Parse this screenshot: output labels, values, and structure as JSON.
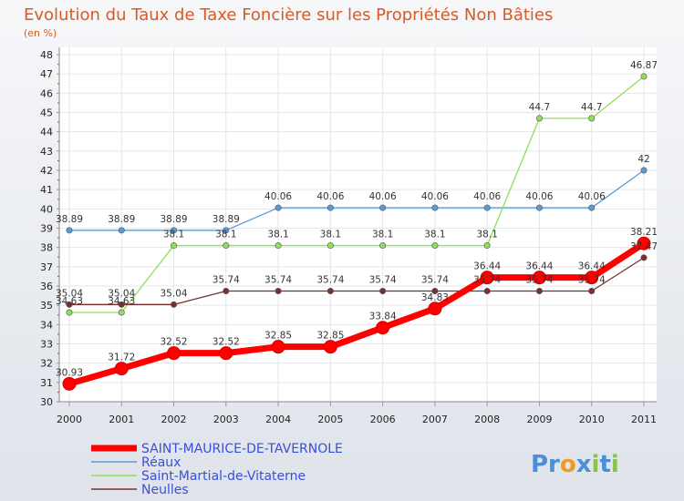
{
  "chart_data": {
    "type": "line",
    "title": "Evolution du Taux de Taxe Foncière sur les Propriétés Non Bâties",
    "subtitle": "(en %)",
    "categories": [
      "2000",
      "2001",
      "2002",
      "2003",
      "2004",
      "2005",
      "2006",
      "2007",
      "2008",
      "2009",
      "2010",
      "2011"
    ],
    "ylim": [
      30,
      48
    ],
    "yticks": [
      "30",
      "31",
      "32",
      "33",
      "34",
      "35",
      "36",
      "37",
      "38",
      "39",
      "40",
      "41",
      "42",
      "43",
      "44",
      "45",
      "46",
      "47",
      "48"
    ],
    "grid": true,
    "legend_position": "bottom-left",
    "series": [
      {
        "name": "SAINT-MAURICE-DE-TAVERNOLE",
        "color": "#ff0000",
        "values": [
          30.93,
          31.72,
          32.52,
          32.52,
          32.85,
          32.85,
          33.84,
          34.83,
          36.44,
          36.44,
          36.44,
          38.21
        ],
        "labels": [
          "30.93",
          "31.72",
          "32.52",
          "32.52",
          "32.85",
          "32.85",
          "33.84",
          "34.83",
          "36.44",
          "36.44",
          "36.44",
          "38.21"
        ]
      },
      {
        "name": "Réaux",
        "color": "#5b9bd5",
        "values": [
          38.89,
          38.89,
          38.89,
          38.89,
          40.06,
          40.06,
          40.06,
          40.06,
          40.06,
          40.06,
          40.06,
          42
        ],
        "labels": [
          "38.89",
          "38.89",
          "38.89",
          "38.89",
          "40.06",
          "40.06",
          "40.06",
          "40.06",
          "40.06",
          "40.06",
          "40.06",
          "42"
        ]
      },
      {
        "name": "Saint-Martial-de-Vitaterne",
        "color": "#8ee05a",
        "values": [
          34.63,
          34.63,
          38.1,
          38.1,
          38.1,
          38.1,
          38.1,
          38.1,
          38.1,
          44.7,
          44.7,
          46.87
        ],
        "labels": [
          "34.63",
          "34.63",
          "38.1",
          "38.1",
          "38.1",
          "38.1",
          "38.1",
          "38.1",
          "38.1",
          "44.7",
          "44.7",
          "46.87"
        ]
      },
      {
        "name": "Neulles",
        "color": "#7a2f30",
        "values": [
          35.04,
          35.04,
          35.04,
          35.74,
          35.74,
          35.74,
          35.74,
          35.74,
          35.74,
          35.74,
          35.74,
          37.47
        ],
        "labels": [
          "35.04",
          "35.04",
          "35.04",
          "35.74",
          "35.74",
          "35.74",
          "35.74",
          "35.74",
          "35.74",
          "35.74",
          "35.74",
          "37.47"
        ]
      }
    ]
  },
  "logo": {
    "parts": [
      "Pr",
      "o",
      "x",
      "i",
      "t",
      "i"
    ],
    "colors": [
      "#4a8fd8",
      "#f29a1f",
      "#4a8fd8",
      "#8bc34a",
      "#4a8fd8",
      "#8bc34a"
    ]
  }
}
